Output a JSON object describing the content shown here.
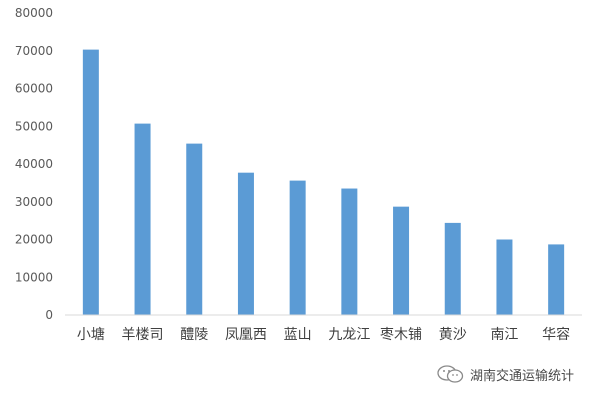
{
  "chart_data": {
    "type": "bar",
    "categories": [
      "小塘",
      "羊楼司",
      "醴陵",
      "凤凰西",
      "蓝山",
      "九龙江",
      "枣木铺",
      "黄沙",
      "南江",
      "华容"
    ],
    "values": [
      70300,
      50700,
      45400,
      37700,
      35600,
      33500,
      28700,
      24400,
      20000,
      18700
    ],
    "ylim": [
      0,
      80000
    ],
    "yticks": [
      0,
      10000,
      20000,
      30000,
      40000,
      50000,
      60000,
      70000,
      80000
    ],
    "grid": false,
    "legend": "none",
    "bar_color": "#5b9bd5"
  },
  "watermark": {
    "text": "湖南交通运输统计",
    "icon": "wechat-icon"
  }
}
